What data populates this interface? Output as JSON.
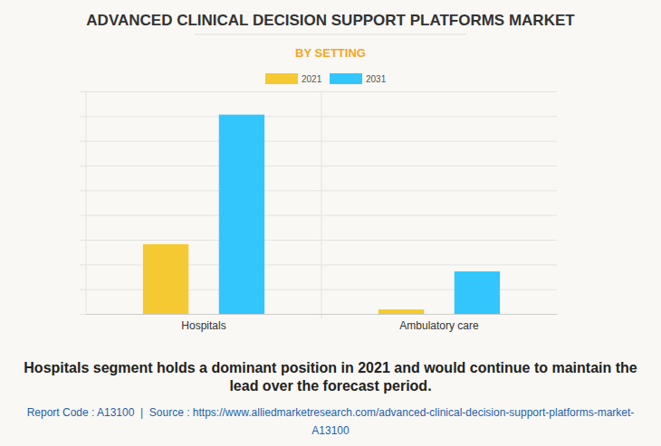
{
  "chart_data": {
    "type": "bar",
    "title": "ADVANCED CLINICAL DECISION SUPPORT PLATFORMS MARKET",
    "subtitle": "BY SETTING",
    "categories": [
      "Hospitals",
      "Ambulatory care"
    ],
    "series": [
      {
        "name": "2021",
        "color": "#f5c932",
        "values": [
          2.82,
          0.18
        ]
      },
      {
        "name": "2031",
        "color": "#33c6fd",
        "values": [
          8.06,
          1.72
        ]
      }
    ],
    "ylim": [
      0,
      9
    ],
    "yticks": [
      0,
      1,
      2,
      3,
      4,
      5,
      6,
      7,
      8,
      9
    ],
    "grid": true,
    "tick_labels": "x",
    "legend": "top",
    "annotations": [
      "Hospitals segment holds a dominant position in 2021 and would continue to maintain the lead over the forecast period.",
      "Report Code : A13100  |  Source : https://www.alliedmarketresearch.com/advanced-clinical-decision-support-platforms-market-A13100"
    ]
  }
}
